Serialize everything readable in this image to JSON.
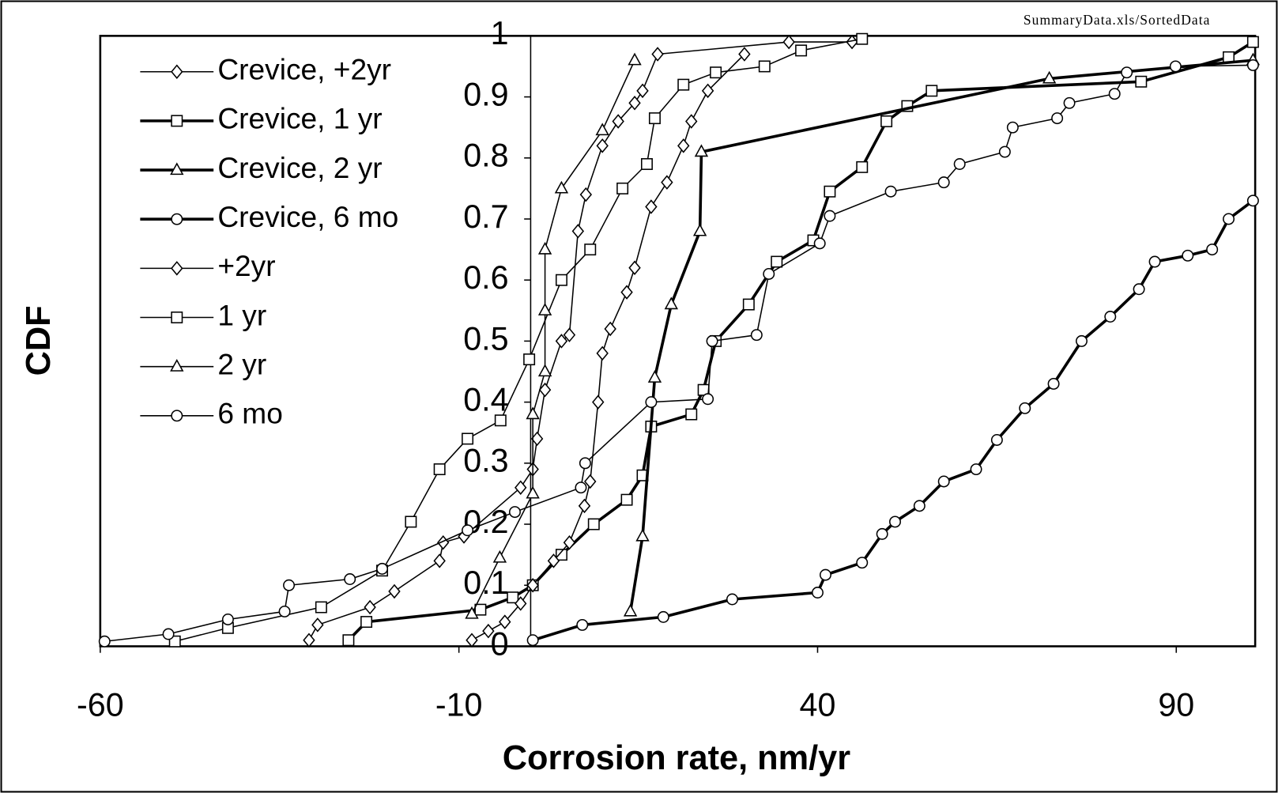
{
  "chart_data": {
    "type": "line",
    "note": "SummaryData.xls/SortedData",
    "x_label": "Corrosion rate, nm/yr",
    "y_label": "CDF",
    "xlim": [
      -60,
      101
    ],
    "ylim": [
      0,
      1
    ],
    "xticks": [
      -60,
      -10,
      40,
      90
    ],
    "yticks": [
      0,
      0.1,
      0.2,
      0.3,
      0.4,
      0.5,
      0.6,
      0.7,
      0.8,
      0.9,
      1
    ],
    "legend": "upper left",
    "series": [
      {
        "name": "Crevice, +2yr",
        "color": "#000000",
        "marker": "diamond",
        "line_width": 1.5,
        "x": [
          -30.9,
          -29.7,
          -22.4,
          -19,
          -12.7,
          -12.2,
          -9.3,
          -1.4,
          0.3,
          0.9,
          2,
          4.3,
          5.4,
          6.6,
          7.7,
          10,
          12.2,
          14.5,
          15.6,
          17.7,
          36,
          44.8
        ],
        "values": [
          0.01,
          0.035,
          0.064,
          0.09,
          0.14,
          0.17,
          0.18,
          0.26,
          0.29,
          0.34,
          0.42,
          0.5,
          0.51,
          0.68,
          0.74,
          0.82,
          0.86,
          0.89,
          0.91,
          0.97,
          0.99,
          0.99
        ]
      },
      {
        "name": "Crevice, 1 yr",
        "color": "#000000",
        "marker": "square",
        "line_width": 3.5,
        "x": [
          -25.4,
          -22.9,
          -7,
          -2.5,
          0.3,
          4.3,
          8.8,
          13.4,
          15.6,
          16.8,
          22.4,
          24.1,
          25.8,
          30.4,
          34.3,
          39.4,
          41.7,
          46.2,
          49.6,
          52.5,
          55.9,
          85.1,
          97.3,
          100.7
        ],
        "values": [
          0.01,
          0.04,
          0.06,
          0.08,
          0.1,
          0.15,
          0.2,
          0.24,
          0.28,
          0.36,
          0.38,
          0.42,
          0.5,
          0.56,
          0.63,
          0.665,
          0.745,
          0.785,
          0.86,
          0.885,
          0.91,
          0.925,
          0.965,
          0.99
        ]
      },
      {
        "name": "Crevice, 2 yr",
        "color": "#000000",
        "marker": "triangle",
        "line_width": 3.5,
        "x": [
          13.9,
          15.6,
          17.3,
          19.6,
          23.6,
          23.8,
          72.3,
          100.7
        ],
        "values": [
          0.057,
          0.18,
          0.44,
          0.56,
          0.68,
          0.81,
          0.93,
          0.96
        ]
      },
      {
        "name": "Crevice, 6 mo",
        "color": "#000000",
        "marker": "circle",
        "line_width": 3.5,
        "x": [
          0.3,
          7.2,
          18.5,
          28.1,
          40,
          41.1,
          46.2,
          49,
          50.8,
          54.2,
          57.6,
          62.1,
          65,
          68.9,
          72.9,
          76.8,
          80.8,
          84.8,
          87,
          91.6,
          95,
          97.3,
          100.7
        ],
        "values": [
          0.01,
          0.035,
          0.048,
          0.077,
          0.088,
          0.117,
          0.137,
          0.184,
          0.204,
          0.23,
          0.27,
          0.29,
          0.338,
          0.39,
          0.43,
          0.5,
          0.54,
          0.585,
          0.63,
          0.64,
          0.65,
          0.7,
          0.73
        ]
      },
      {
        "name": "+2yr",
        "color": "#000000",
        "marker": "diamond",
        "line_width": 1.5,
        "x": [
          -8.2,
          -5.9,
          -3.6,
          -1.4,
          0.3,
          3.2,
          5.4,
          7.5,
          8.3,
          9.4,
          10,
          11.1,
          13.4,
          14.5,
          16.8,
          19,
          21.3,
          22.4,
          24.7,
          29.8
        ],
        "values": [
          0.01,
          0.025,
          0.04,
          0.07,
          0.1,
          0.14,
          0.17,
          0.23,
          0.27,
          0.4,
          0.48,
          0.52,
          0.58,
          0.62,
          0.72,
          0.76,
          0.82,
          0.86,
          0.91,
          0.97
        ]
      },
      {
        "name": "1 yr",
        "color": "#000000",
        "marker": "square",
        "line_width": 1.5,
        "x": [
          -49.6,
          -42.2,
          -29.2,
          -20.7,
          -16.7,
          -12.7,
          -8.8,
          -4.2,
          -0.2,
          4.3,
          8.3,
          12.8,
          16.2,
          17.3,
          21.3,
          25.8,
          32.6,
          37.7,
          46.2
        ],
        "values": [
          0.008,
          0.03,
          0.064,
          0.124,
          0.204,
          0.29,
          0.34,
          0.37,
          0.47,
          0.6,
          0.65,
          0.75,
          0.79,
          0.865,
          0.92,
          0.94,
          0.95,
          0.976,
          0.995
        ]
      },
      {
        "name": "2 yr",
        "color": "#000000",
        "marker": "triangle",
        "line_width": 1.5,
        "x": [
          -8.2,
          -4.3,
          0.3,
          0.3,
          2,
          2,
          2,
          4.3,
          10,
          14.5
        ],
        "values": [
          0.053,
          0.145,
          0.25,
          0.38,
          0.45,
          0.55,
          0.65,
          0.75,
          0.845,
          0.96
        ]
      },
      {
        "name": "6 mo",
        "color": "#000000",
        "marker": "circle",
        "line_width": 1.5,
        "x": [
          -59.4,
          -50.5,
          -42.2,
          -34.3,
          -33.7,
          -25.2,
          -20.7,
          -8.8,
          -2.2,
          7,
          7.6,
          16.8,
          24.7,
          25.3,
          31.5,
          33.2,
          40.3,
          41.7,
          50.2,
          57.6,
          59.8,
          66.1,
          67.2,
          73.4,
          75.1,
          81.4,
          83.1,
          89.9,
          100.7
        ],
        "values": [
          0.008,
          0.02,
          0.044,
          0.057,
          0.1,
          0.11,
          0.127,
          0.19,
          0.22,
          0.26,
          0.3,
          0.4,
          0.405,
          0.5,
          0.51,
          0.61,
          0.66,
          0.705,
          0.745,
          0.76,
          0.79,
          0.81,
          0.85,
          0.865,
          0.89,
          0.905,
          0.94,
          0.95,
          0.952
        ]
      }
    ]
  }
}
